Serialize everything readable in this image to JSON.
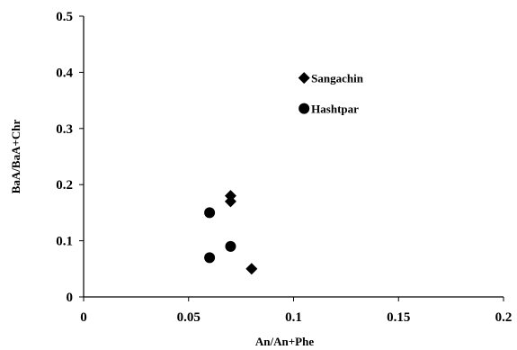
{
  "chart_data": {
    "type": "scatter",
    "title": "",
    "xlabel": "An/An+Phe",
    "ylabel": "BaA/BaA+Chr",
    "xlim": [
      0,
      0.2
    ],
    "ylim": [
      0,
      0.5
    ],
    "x_ticks": [
      "0",
      "0.05",
      "0.1",
      "0.15",
      "0.2"
    ],
    "y_ticks": [
      "0",
      "0.1",
      "0.2",
      "0.3",
      "0.4",
      "0.5"
    ],
    "grid": false,
    "legend_position": "top-right",
    "series": [
      {
        "name": "Sangachin",
        "marker": "diamond",
        "color": "#000000",
        "points": [
          {
            "x": 0.07,
            "y": 0.18
          },
          {
            "x": 0.07,
            "y": 0.17
          },
          {
            "x": 0.08,
            "y": 0.05
          }
        ]
      },
      {
        "name": "Hashtpar",
        "marker": "circle",
        "color": "#000000",
        "points": [
          {
            "x": 0.06,
            "y": 0.15
          },
          {
            "x": 0.07,
            "y": 0.09
          },
          {
            "x": 0.06,
            "y": 0.07
          }
        ]
      }
    ]
  }
}
